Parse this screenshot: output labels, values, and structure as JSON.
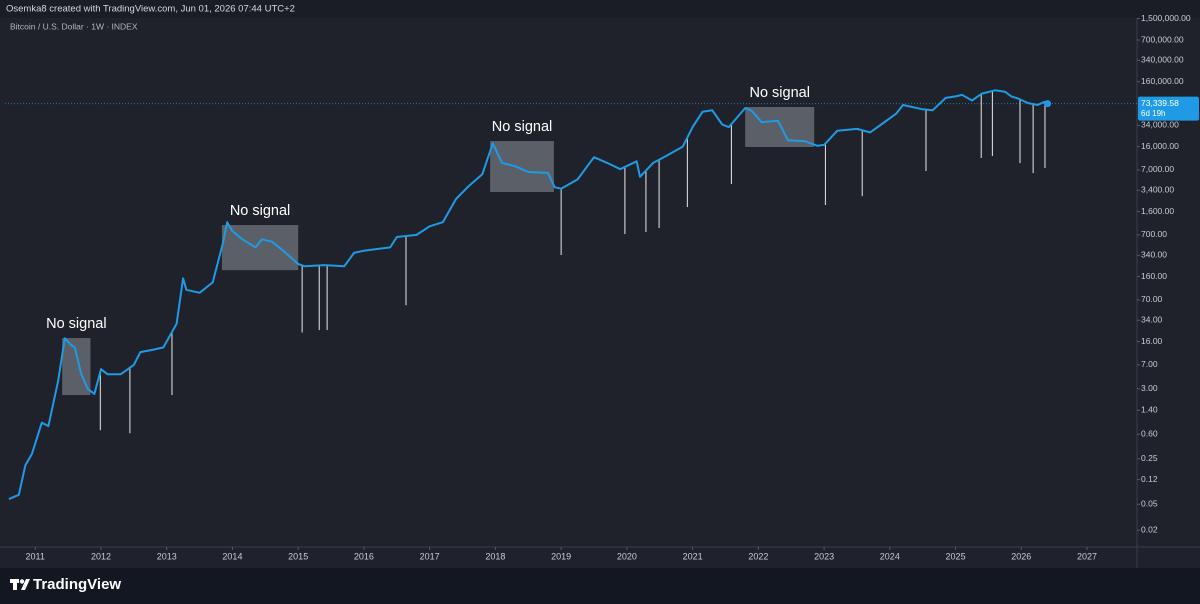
{
  "chart_data": {
    "type": "line",
    "caption": "Osemka8 created with TradingView.com, Jun 01, 2026 07:44 UTC+2",
    "title": "Bitcoin / U.S. Dollar · 1W · INDEX",
    "brand": "TradingView",
    "log_scale": true,
    "grid": false,
    "color": "#1f9be6",
    "x": [
      2010.6,
      2010.75,
      2010.85,
      2010.95,
      2011.1,
      2011.2,
      2011.35,
      2011.45,
      2011.55,
      2011.6,
      2011.7,
      2011.8,
      2011.9,
      2012.0,
      2012.1,
      2012.3,
      2012.5,
      2012.6,
      2012.8,
      2012.95,
      2013.15,
      2013.25,
      2013.3,
      2013.5,
      2013.7,
      2013.85,
      2013.92,
      2014.0,
      2014.15,
      2014.35,
      2014.45,
      2014.6,
      2014.8,
      2015.0,
      2015.1,
      2015.4,
      2015.7,
      2015.85,
      2016.0,
      2016.4,
      2016.5,
      2016.8,
      2017.0,
      2017.2,
      2017.4,
      2017.6,
      2017.8,
      2017.96,
      2018.1,
      2018.3,
      2018.5,
      2018.8,
      2018.9,
      2019.0,
      2019.25,
      2019.5,
      2019.7,
      2019.9,
      2020.15,
      2020.2,
      2020.4,
      2020.6,
      2020.85,
      2021.0,
      2021.15,
      2021.3,
      2021.45,
      2021.55,
      2021.8,
      2021.9,
      2022.05,
      2022.3,
      2022.45,
      2022.7,
      2022.9,
      2023.0,
      2023.2,
      2023.5,
      2023.7,
      2023.9,
      2024.1,
      2024.2,
      2024.5,
      2024.65,
      2024.85,
      2025.0,
      2025.1,
      2025.25,
      2025.4,
      2025.6,
      2025.75,
      2025.85,
      2025.95,
      2026.1,
      2026.25,
      2026.35,
      2026.4
    ],
    "values": [
      0.06,
      0.07,
      0.2,
      0.3,
      0.9,
      0.8,
      4,
      18,
      14,
      13,
      5,
      3,
      2.5,
      6,
      5,
      5,
      7,
      11,
      12,
      13,
      30,
      150,
      100,
      90,
      130,
      500,
      1100,
      800,
      600,
      450,
      600,
      550,
      380,
      250,
      230,
      240,
      230,
      370,
      400,
      450,
      650,
      700,
      950,
      1100,
      2500,
      4000,
      6000,
      18000,
      9000,
      8000,
      6500,
      6300,
      3800,
      3600,
      5000,
      11000,
      9000,
      7200,
      9500,
      5500,
      9000,
      11500,
      16000,
      32000,
      55000,
      58000,
      35000,
      32000,
      63000,
      57000,
      38000,
      40000,
      20000,
      19500,
      16500,
      17000,
      28000,
      30000,
      26500,
      37000,
      52000,
      70000,
      60000,
      58000,
      90000,
      95000,
      100000,
      82000,
      105000,
      118000,
      112000,
      95000,
      88000,
      75000,
      70000,
      78000,
      73339.58
    ],
    "signals": {
      "x": [
        2011.99,
        2012.44,
        2013.08,
        2015.06,
        2015.32,
        2015.44,
        2016.64,
        2019.0,
        2019.97,
        2020.29,
        2020.49,
        2020.92,
        2021.59,
        2023.02,
        2023.58,
        2024.55,
        2025.39,
        2025.56,
        2025.98,
        2026.18,
        2026.36
      ],
      "values": [
        0.69,
        0.62,
        2.4,
        22,
        24,
        24,
        58,
        343,
        721,
        774,
        893,
        1880,
        4250,
        2020,
        2770,
        6730,
        10700,
        11500,
        8930,
        6270,
        7480
      ]
    },
    "annotations": [
      {
        "text": "No signal",
        "x": [
          2011.41,
          2011.84
        ],
        "y": [
          2.4,
          18.1
        ]
      },
      {
        "text": "No signal",
        "x": [
          2013.84,
          2015.0
        ],
        "y": [
          201,
          993
        ]
      },
      {
        "text": "No signal",
        "x": [
          2017.92,
          2018.89
        ],
        "y": [
          3200,
          19500
        ]
      },
      {
        "text": "No signal",
        "x": [
          2021.8,
          2022.85
        ],
        "y": [
          15800,
          65200
        ]
      }
    ],
    "price_tag": {
      "value": 73339.58,
      "label": "73,339.58"
    },
    "countdown": "6d 19h",
    "xlim": [
      2010.54,
      2027.76
    ],
    "xticks": [
      2011,
      2012,
      2013,
      2014,
      2015,
      2016,
      2017,
      2018,
      2019,
      2020,
      2021,
      2022,
      2023,
      2024,
      2025,
      2026,
      2027
    ],
    "ylim": [
      0.011,
      1890000
    ],
    "yticks": [
      {
        "value": 1500000,
        "label": "1,500,000.00"
      },
      {
        "value": 700000,
        "label": "700,000.00"
      },
      {
        "value": 340000,
        "label": "340,000.00"
      },
      {
        "value": 160000,
        "label": "160,000.00"
      },
      {
        "value": 34000,
        "label": "34,000.00"
      },
      {
        "value": 16000,
        "label": "16,000.00"
      },
      {
        "value": 7000,
        "label": "7,000.00"
      },
      {
        "value": 3400,
        "label": "3,400.00"
      },
      {
        "value": 1600,
        "label": "1,600.00"
      },
      {
        "value": 700,
        "label": "700.00"
      },
      {
        "value": 340,
        "label": "340.00"
      },
      {
        "value": 160,
        "label": "160.00"
      },
      {
        "value": 70,
        "label": "70.00"
      },
      {
        "value": 34,
        "label": "34.00"
      },
      {
        "value": 16,
        "label": "16.00"
      },
      {
        "value": 7,
        "label": "7.00"
      },
      {
        "value": 3,
        "label": "3.00"
      },
      {
        "value": 1.4,
        "label": "1.40"
      },
      {
        "value": 0.6,
        "label": "0.60"
      },
      0.25,
      0.12,
      0.05,
      0.02
    ]
  }
}
